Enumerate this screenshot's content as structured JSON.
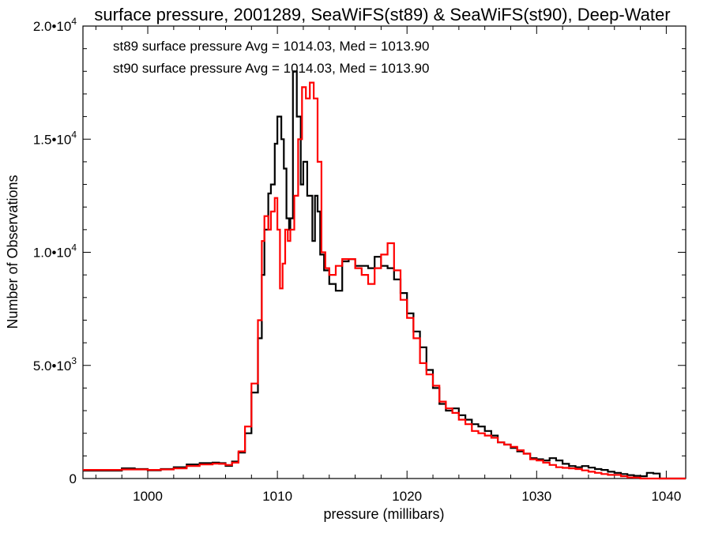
{
  "chart_data": {
    "type": "line",
    "title": "surface pressure, 2001289, SeaWiFS(st89) & SeaWiFS(st90), Deep-Water",
    "xlabel": "pressure (millibars)",
    "ylabel": "Number of Observations",
    "xlim": [
      995,
      1041.5
    ],
    "ylim": [
      0,
      20000
    ],
    "grid": false,
    "x_ticks": [
      {
        "value": 1000,
        "label": "1000"
      },
      {
        "value": 1010,
        "label": "1010"
      },
      {
        "value": 1020,
        "label": "1020"
      },
      {
        "value": 1030,
        "label": "1030"
      },
      {
        "value": 1040,
        "label": "1040"
      }
    ],
    "y_ticks": [
      {
        "value": 0,
        "mantissa": "0",
        "exponent": ""
      },
      {
        "value": 5000,
        "mantissa": "5.0•10",
        "exponent": "3"
      },
      {
        "value": 10000,
        "mantissa": "1.0•10",
        "exponent": "4"
      },
      {
        "value": 15000,
        "mantissa": "1.5•10",
        "exponent": "4"
      },
      {
        "value": 20000,
        "mantissa": "2.0•10",
        "exponent": "4"
      }
    ],
    "legend_placement": "top-left",
    "series": [
      {
        "name": "st89 surface pressure Avg = 1014.03, Med = 1013.90",
        "color": "#000000",
        "style": "step",
        "points": [
          [
            995,
            350
          ],
          [
            996,
            350
          ],
          [
            997,
            350
          ],
          [
            998,
            450
          ],
          [
            999,
            420
          ],
          [
            1000,
            360
          ],
          [
            1001,
            420
          ],
          [
            1002,
            500
          ],
          [
            1003,
            620
          ],
          [
            1004,
            680
          ],
          [
            1005,
            700
          ],
          [
            1005.5,
            680
          ],
          [
            1006,
            560
          ],
          [
            1006.5,
            750
          ],
          [
            1007,
            1150
          ],
          [
            1007.5,
            2000
          ],
          [
            1008,
            3800
          ],
          [
            1008.5,
            6200
          ],
          [
            1008.8,
            9000
          ],
          [
            1009,
            11000
          ],
          [
            1009.3,
            12600
          ],
          [
            1009.5,
            13000
          ],
          [
            1009.8,
            14800
          ],
          [
            1010,
            16000
          ],
          [
            1010.3,
            15000
          ],
          [
            1010.5,
            13700
          ],
          [
            1010.7,
            11500
          ],
          [
            1010.9,
            11000
          ],
          [
            1011,
            11500
          ],
          [
            1011.2,
            18000
          ],
          [
            1011.5,
            16000
          ],
          [
            1011.8,
            13000
          ],
          [
            1012,
            14000
          ],
          [
            1012.3,
            12500
          ],
          [
            1012.7,
            10500
          ],
          [
            1012.9,
            12500
          ],
          [
            1013.1,
            11800
          ],
          [
            1013.3,
            9900
          ],
          [
            1013.6,
            9200
          ],
          [
            1014,
            8600
          ],
          [
            1014.5,
            8300
          ],
          [
            1015,
            9600
          ],
          [
            1015.5,
            9700
          ],
          [
            1016,
            9400
          ],
          [
            1016.5,
            9400
          ],
          [
            1017,
            9300
          ],
          [
            1017.5,
            9800
          ],
          [
            1018,
            9400
          ],
          [
            1018.5,
            9300
          ],
          [
            1019,
            8800
          ],
          [
            1019.5,
            8200
          ],
          [
            1020,
            7300
          ],
          [
            1020.5,
            6500
          ],
          [
            1021,
            5800
          ],
          [
            1021.5,
            4800
          ],
          [
            1022,
            4000
          ],
          [
            1022.5,
            3300
          ],
          [
            1023,
            3000
          ],
          [
            1023.5,
            3100
          ],
          [
            1024,
            2800
          ],
          [
            1024.5,
            2600
          ],
          [
            1025,
            2400
          ],
          [
            1025.5,
            2300
          ],
          [
            1026,
            2100
          ],
          [
            1026.5,
            1900
          ],
          [
            1027,
            1600
          ],
          [
            1027.5,
            1500
          ],
          [
            1028,
            1350
          ],
          [
            1028.5,
            1200
          ],
          [
            1029,
            1100
          ],
          [
            1029.5,
            900
          ],
          [
            1030,
            850
          ],
          [
            1030.5,
            800
          ],
          [
            1031,
            900
          ],
          [
            1031.5,
            800
          ],
          [
            1032,
            650
          ],
          [
            1032.5,
            550
          ],
          [
            1033,
            500
          ],
          [
            1033.5,
            550
          ],
          [
            1034,
            480
          ],
          [
            1034.5,
            420
          ],
          [
            1035,
            380
          ],
          [
            1035.5,
            300
          ],
          [
            1036,
            250
          ],
          [
            1036.5,
            200
          ],
          [
            1037,
            150
          ],
          [
            1037.5,
            120
          ],
          [
            1038,
            100
          ],
          [
            1038.5,
            250
          ],
          [
            1039,
            220
          ],
          [
            1039.5,
            0
          ],
          [
            1040,
            0
          ],
          [
            1041,
            0
          ]
        ]
      },
      {
        "name": "st90 surface pressure Avg = 1014.03, Med = 1013.90",
        "color": "#ff0000",
        "style": "step",
        "points": [
          [
            995,
            380
          ],
          [
            996,
            380
          ],
          [
            997,
            380
          ],
          [
            998,
            400
          ],
          [
            999,
            400
          ],
          [
            1000,
            380
          ],
          [
            1001,
            400
          ],
          [
            1002,
            450
          ],
          [
            1003,
            550
          ],
          [
            1004,
            620
          ],
          [
            1005,
            660
          ],
          [
            1005.5,
            650
          ],
          [
            1006,
            600
          ],
          [
            1006.5,
            700
          ],
          [
            1007,
            1200
          ],
          [
            1007.5,
            2300
          ],
          [
            1008,
            4200
          ],
          [
            1008.5,
            7000
          ],
          [
            1008.8,
            10500
          ],
          [
            1009,
            11600
          ],
          [
            1009.3,
            11000
          ],
          [
            1009.5,
            11800
          ],
          [
            1009.8,
            12400
          ],
          [
            1010,
            11000
          ],
          [
            1010.2,
            8400
          ],
          [
            1010.4,
            9500
          ],
          [
            1010.6,
            11000
          ],
          [
            1010.8,
            10500
          ],
          [
            1011,
            11000
          ],
          [
            1011.3,
            12500
          ],
          [
            1011.6,
            15000
          ],
          [
            1011.9,
            17300
          ],
          [
            1012.2,
            16800
          ],
          [
            1012.5,
            17500
          ],
          [
            1012.8,
            16800
          ],
          [
            1013.1,
            14000
          ],
          [
            1013.4,
            10000
          ],
          [
            1013.7,
            9300
          ],
          [
            1014,
            9000
          ],
          [
            1014.5,
            9400
          ],
          [
            1015,
            9700
          ],
          [
            1015.5,
            9700
          ],
          [
            1016,
            9300
          ],
          [
            1016.5,
            9000
          ],
          [
            1017,
            8600
          ],
          [
            1017.5,
            9300
          ],
          [
            1018,
            9900
          ],
          [
            1018.5,
            10400
          ],
          [
            1019,
            9200
          ],
          [
            1019.5,
            7900
          ],
          [
            1020,
            7100
          ],
          [
            1020.5,
            6200
          ],
          [
            1021,
            5100
          ],
          [
            1021.5,
            4600
          ],
          [
            1022,
            4100
          ],
          [
            1022.5,
            3400
          ],
          [
            1023,
            3100
          ],
          [
            1023.5,
            2900
          ],
          [
            1024,
            2600
          ],
          [
            1024.5,
            2400
          ],
          [
            1025,
            2100
          ],
          [
            1025.5,
            2000
          ],
          [
            1026,
            1900
          ],
          [
            1026.5,
            1800
          ],
          [
            1027,
            1600
          ],
          [
            1027.5,
            1500
          ],
          [
            1028,
            1400
          ],
          [
            1028.5,
            1250
          ],
          [
            1029,
            1100
          ],
          [
            1029.5,
            850
          ],
          [
            1030,
            800
          ],
          [
            1030.5,
            700
          ],
          [
            1031,
            600
          ],
          [
            1031.5,
            500
          ],
          [
            1032,
            470
          ],
          [
            1032.5,
            450
          ],
          [
            1033,
            420
          ],
          [
            1033.5,
            360
          ],
          [
            1034,
            300
          ],
          [
            1034.5,
            250
          ],
          [
            1035,
            200
          ],
          [
            1035.5,
            160
          ],
          [
            1036,
            160
          ],
          [
            1036.5,
            100
          ],
          [
            1037,
            50
          ],
          [
            1037.5,
            40
          ],
          [
            1038,
            0
          ],
          [
            1039,
            0
          ],
          [
            1041,
            0
          ]
        ]
      }
    ]
  }
}
